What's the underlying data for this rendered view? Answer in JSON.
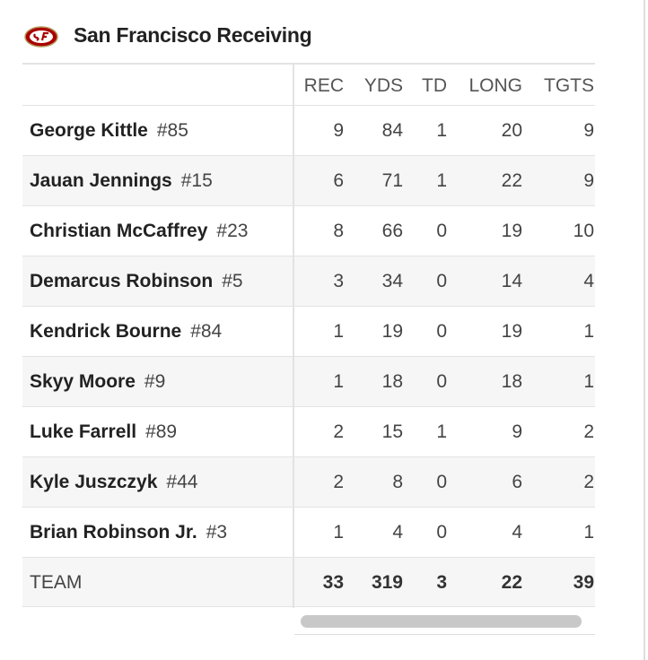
{
  "header": {
    "title": "San Francisco Receiving"
  },
  "table": {
    "columns": [
      "REC",
      "YDS",
      "TD",
      "LONG",
      "TGTS"
    ],
    "rows": [
      {
        "name": "George Kittle",
        "number": "#85",
        "stats": [
          9,
          84,
          1,
          20,
          9
        ]
      },
      {
        "name": "Jauan Jennings",
        "number": "#15",
        "stats": [
          6,
          71,
          1,
          22,
          9
        ]
      },
      {
        "name": "Christian McCaffrey",
        "number": "#23",
        "stats": [
          8,
          66,
          0,
          19,
          10
        ]
      },
      {
        "name": "Demarcus Robinson",
        "number": "#5",
        "stats": [
          3,
          34,
          0,
          14,
          4
        ]
      },
      {
        "name": "Kendrick Bourne",
        "number": "#84",
        "stats": [
          1,
          19,
          0,
          19,
          1
        ]
      },
      {
        "name": "Skyy Moore",
        "number": "#9",
        "stats": [
          1,
          18,
          0,
          18,
          1
        ]
      },
      {
        "name": "Luke Farrell",
        "number": "#89",
        "stats": [
          2,
          15,
          1,
          9,
          2
        ]
      },
      {
        "name": "Kyle Juszczyk",
        "number": "#44",
        "stats": [
          2,
          8,
          0,
          6,
          2
        ]
      },
      {
        "name": "Brian Robinson Jr.",
        "number": "#3",
        "stats": [
          1,
          4,
          0,
          4,
          1
        ]
      }
    ],
    "total": {
      "name": "TEAM",
      "stats": [
        33,
        319,
        3,
        22,
        39
      ]
    }
  }
}
